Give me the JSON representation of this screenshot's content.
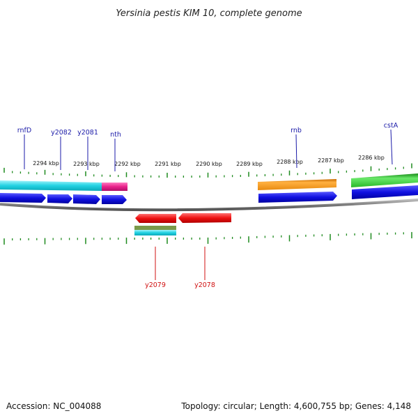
{
  "title": "Yersinia pestis KIM 10, complete genome",
  "footer": {
    "accession": "Accession: NC_004088",
    "summary": "Topology: circular; Length: 4,600,755 bp; Genes: 4,148"
  },
  "colors": {
    "backbone": "#8a8a8a",
    "tick": "#1e8a1e",
    "forward_label": "#1a1aa8",
    "reverse_label": "#d01010",
    "cds": "#1010e0",
    "rrna": "#20c8d8",
    "trna": "#e8208a",
    "misc": "#f09010",
    "green_feature": "#30c030",
    "red_cds": "#ee1010",
    "olive": "#6a8a3a"
  },
  "scale_ticks": [
    {
      "label": "2294 kbp"
    },
    {
      "label": "2293 kbp"
    },
    {
      "label": "2292 kbp"
    },
    {
      "label": "2291 kbp"
    },
    {
      "label": "2290 kbp"
    },
    {
      "label": "2289 kbp"
    },
    {
      "label": "2288 kbp"
    },
    {
      "label": "2287 kbp"
    },
    {
      "label": "2286 kbp"
    }
  ],
  "forward_genes": [
    {
      "name": "rnfD"
    },
    {
      "name": "y2082"
    },
    {
      "name": "y2081"
    },
    {
      "name": "nth"
    },
    {
      "name": "rnb"
    },
    {
      "name": "cstA"
    }
  ],
  "reverse_genes": [
    {
      "name": "y2079"
    },
    {
      "name": "y2078"
    }
  ]
}
